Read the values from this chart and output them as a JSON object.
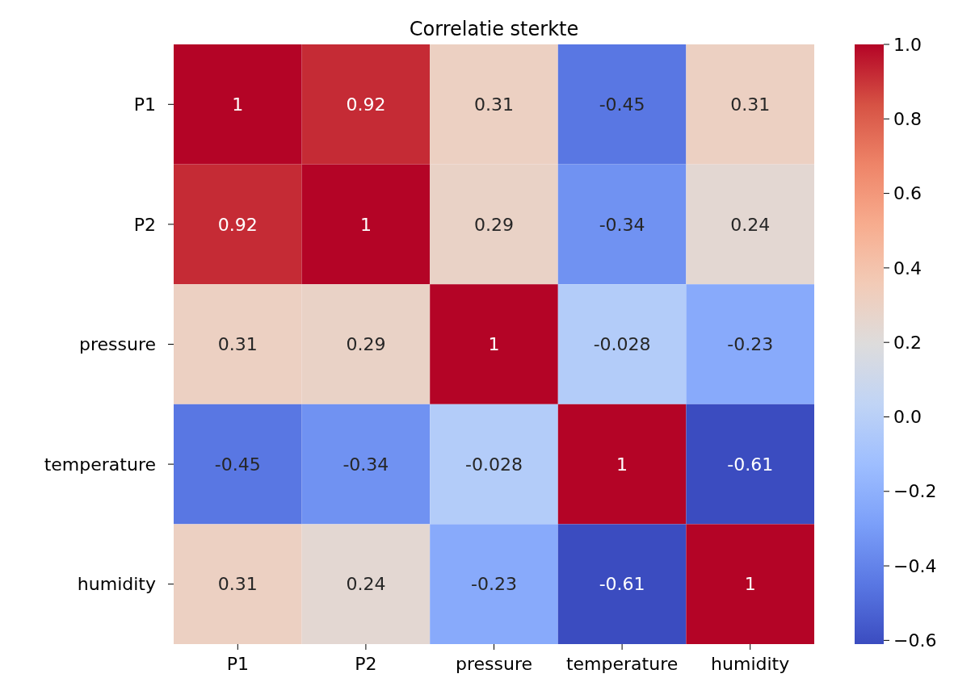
{
  "chart_data": {
    "type": "heatmap",
    "title": "Correlatie sterkte",
    "categories": [
      "P1",
      "P2",
      "pressure",
      "temperature",
      "humidity"
    ],
    "y_categories": [
      "P1",
      "P2",
      "pressure",
      "temperature",
      "humidity"
    ],
    "cells": [
      [
        1,
        0.92,
        0.31,
        -0.45,
        0.31
      ],
      [
        0.92,
        1,
        0.29,
        -0.34,
        0.24
      ],
      [
        0.31,
        0.29,
        1,
        -0.028,
        -0.23
      ],
      [
        -0.45,
        -0.34,
        -0.028,
        1,
        -0.61
      ],
      [
        0.31,
        0.24,
        -0.23,
        -0.61,
        1
      ]
    ],
    "data_labels": true,
    "clim": [
      -0.61,
      1
    ],
    "cticks": [
      {
        "value": -0.6,
        "label": "−0.6"
      },
      {
        "value": -0.4,
        "label": "−0.4"
      },
      {
        "value": -0.2,
        "label": "−0.2"
      },
      {
        "value": 0,
        "label": "0.0"
      },
      0.2,
      0.4,
      0.6,
      0.8,
      {
        "value": 1,
        "label": "1.0"
      }
    ]
  }
}
